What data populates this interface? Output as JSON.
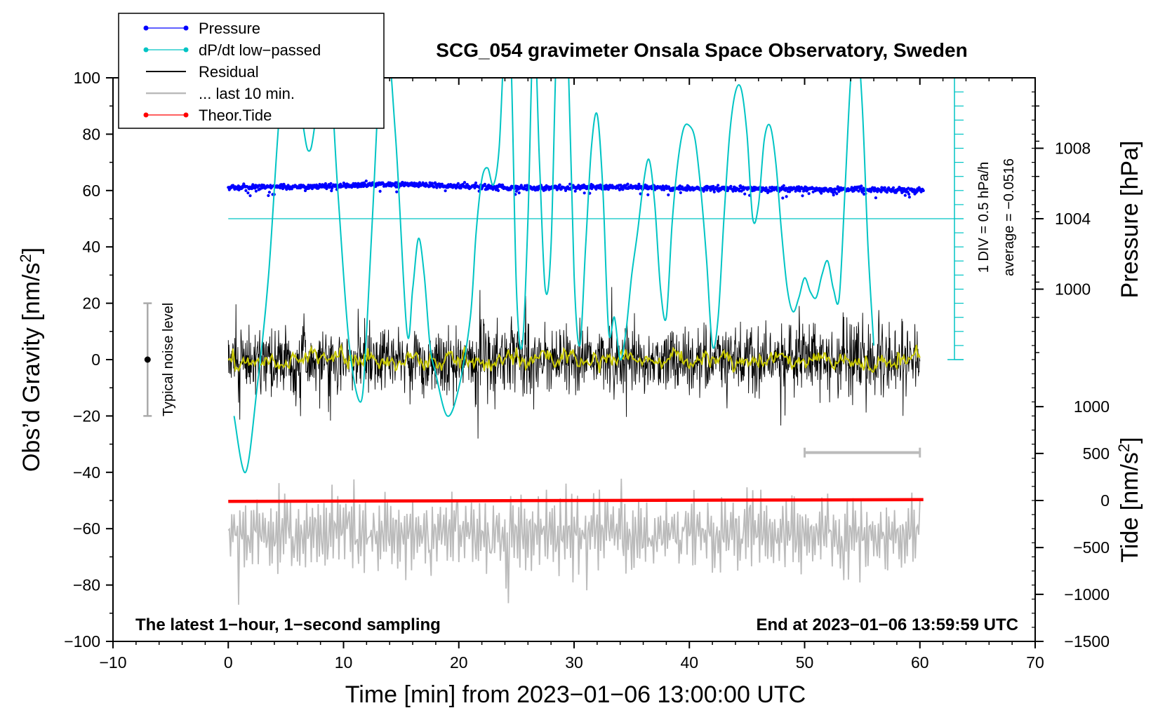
{
  "chart_data": {
    "type": "line",
    "title": "SCG_054 gravimeter Onsala Space Observatory, Sweden",
    "xlabel": "Time [min] from 2023−01−06 13:00:00 UTC",
    "ylabel_main": "Obs’d Gravity [nm/s",
    "ylabel_main_sup": "2",
    "ylabel_main_end": "]",
    "ylabel_pressure": "Pressure [hPa]",
    "ylabel_tide": "Tide [nm/s",
    "ylabel_tide_sup": "2",
    "ylabel_tide_end": "]",
    "xlim": [
      -10,
      70
    ],
    "ylim": [
      -100,
      100
    ],
    "x_ticks": [
      -10,
      0,
      10,
      20,
      30,
      40,
      50,
      60,
      70
    ],
    "x_tick_labels": [
      "−10",
      "0",
      "10",
      "20",
      "30",
      "40",
      "50",
      "60",
      "70"
    ],
    "y_ticks": [
      -100,
      -80,
      -60,
      -40,
      -20,
      0,
      20,
      40,
      60,
      80,
      100
    ],
    "y_tick_labels": [
      "−100",
      "−80",
      "−60",
      "−40",
      "−20",
      "0",
      "20",
      "40",
      "60",
      "80",
      "100"
    ],
    "pressure_axis": {
      "ticks": [
        1000,
        1004,
        1008
      ],
      "tick_labels": [
        "1000",
        "1004",
        "1008"
      ],
      "gravity_equiv": [
        25,
        50,
        75
      ]
    },
    "tide_axis": {
      "ticks": [
        -1500,
        -1000,
        -500,
        0,
        500,
        1000
      ],
      "tick_labels": [
        "−1500",
        "−1000",
        "−500",
        "0",
        "500",
        "1000"
      ],
      "gravity_equiv": [
        -100,
        -83.3,
        -66.7,
        -50,
        -33.3,
        -16.7
      ]
    },
    "legend": [
      {
        "label": "Pressure",
        "color": "#0000ff",
        "marker": true
      },
      {
        "label": "dP/dt low−passed",
        "color": "#00c4c4",
        "marker": true
      },
      {
        "label": "Residual",
        "color": "#000000",
        "marker": false
      },
      {
        "label": "... last 10 min.",
        "color": "#bbbbbb",
        "marker": false
      },
      {
        "label": "Theor.Tide",
        "color": "#ff0000",
        "marker": true
      }
    ],
    "annotations": {
      "bottom_left": "The latest 1−hour, 1−second sampling",
      "bottom_right": "End at 2023−01−06 13:59:59 UTC",
      "noise_label": "Typical noise level",
      "dpdt_div": "1 DIV = 0.5 hPa/h",
      "dpdt_avg": "average = −0.0516"
    },
    "noise_bar": {
      "x": -7,
      "center": 0,
      "low": -20,
      "high": 20
    },
    "last10_bar": {
      "x_start": 50,
      "x_end": 60,
      "y": -33
    },
    "dpdt_axis": {
      "x": 63,
      "y_bottom": 0,
      "y_top": 100,
      "baseline": 50,
      "div": 5
    },
    "series": [
      {
        "name": "Pressure",
        "color": "#0000ff",
        "x_range": [
          0,
          60.3
        ],
        "approx_level": 61,
        "y_profile": {
          "x": [
            0,
            5,
            10,
            15,
            20,
            25,
            30,
            35,
            40,
            45,
            50,
            55,
            60
          ],
          "y": [
            61.2,
            61.3,
            61.7,
            62.3,
            61.5,
            61.0,
            61.2,
            61.3,
            60.8,
            60.6,
            60.6,
            60.4,
            60.0
          ]
        }
      },
      {
        "name": "dP/dt low-passed",
        "color": "#00c4c4",
        "x": [
          0.5,
          1.5,
          2.5,
          3.5,
          4.5,
          5.5,
          6.5,
          7.0,
          7.5,
          8.5,
          9.5,
          10.5,
          11.5,
          12.0,
          12.5,
          13.5,
          14.5,
          15.5,
          16.0,
          16.5,
          17.0,
          17.5,
          18.0,
          19.0,
          20.0,
          21.0,
          21.5,
          22.0,
          22.5,
          23.0,
          23.5,
          24.0,
          24.5,
          25.0,
          25.5,
          26.0,
          26.5,
          27.0,
          27.5,
          28.0,
          28.5,
          29.0,
          29.5,
          30.0,
          30.5,
          31.0,
          31.5,
          32.0,
          32.5,
          33.0,
          33.5,
          34.0,
          34.5,
          35.0,
          35.5,
          36.0,
          36.5,
          37.0,
          37.5,
          38.0,
          38.5,
          39.0,
          39.5,
          40.0,
          40.5,
          41.0,
          41.5,
          42.0,
          42.5,
          43.0,
          43.5,
          44.0,
          44.5,
          45.0,
          45.5,
          46.0,
          46.5,
          47.0,
          47.5,
          48.0,
          48.5,
          49.0,
          49.5,
          50.0,
          50.5,
          51.0,
          51.5,
          52.0,
          52.5,
          53.0,
          53.5,
          54.0,
          54.5,
          55.0,
          55.5,
          56.0
        ],
        "y": [
          -20,
          -40,
          -10,
          30,
          90,
          115,
          83,
          74,
          83,
          120,
          60,
          5,
          -15,
          10,
          50,
          120,
          80,
          10,
          25,
          43,
          30,
          5,
          -5,
          -20,
          -10,
          15,
          45,
          64,
          68,
          62,
          75,
          115,
          110,
          25,
          5,
          50,
          120,
          70,
          25,
          40,
          115,
          130,
          105,
          30,
          5,
          40,
          75,
          87,
          60,
          10,
          15,
          0,
          10,
          30,
          45,
          62,
          71,
          55,
          25,
          15,
          48,
          70,
          82,
          83,
          78,
          60,
          35,
          5,
          15,
          50,
          80,
          95,
          96,
          80,
          50,
          55,
          78,
          83,
          70,
          45,
          25,
          17,
          22,
          29,
          24,
          22,
          30,
          35,
          25,
          22,
          60,
          100,
          115,
          90,
          40,
          5
        ]
      },
      {
        "name": "Residual",
        "color": "#000000",
        "x_range": [
          0,
          60
        ],
        "mean": 0,
        "std": 6,
        "peak_range": [
          -28,
          26
        ]
      },
      {
        "name": "Residual smoothed",
        "color": "#c8c800",
        "x_range": [
          0,
          60
        ],
        "mean": 0,
        "amplitude": 2
      },
      {
        "name": "... last 10 min.",
        "color": "#bbbbbb",
        "x_range": [
          0,
          60
        ],
        "mean": -62,
        "amplitude": 12,
        "peak_range": [
          -87,
          -33
        ]
      },
      {
        "name": "Theor.Tide",
        "color": "#ff0000",
        "x": [
          0,
          60.3
        ],
        "y": [
          -50.3,
          -49.7
        ]
      }
    ]
  }
}
